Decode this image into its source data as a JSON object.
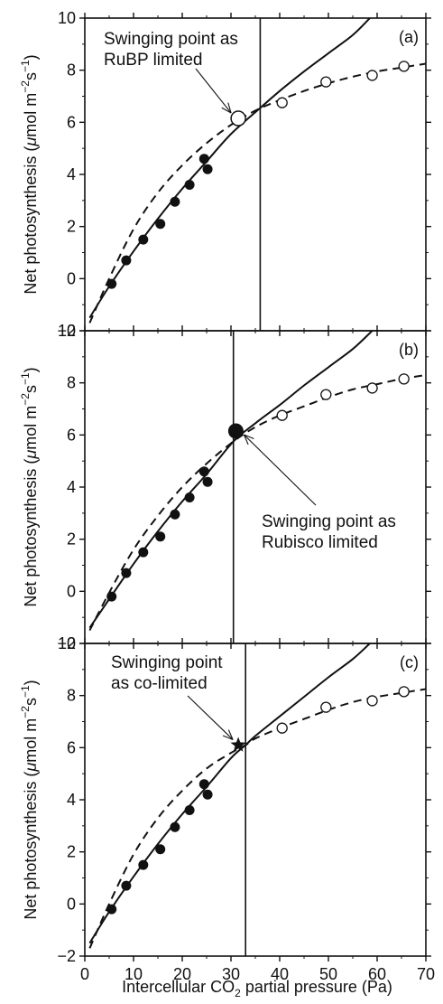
{
  "chart_data": {
    "type": "scatter",
    "xlabel_prefix": "Intercellular CO",
    "xlabel_sub": "2",
    "xlabel_suffix": " partial pressure (Pa)",
    "ylabel_prefix": "Net photosynthesis (",
    "ylabel_mu": "μ",
    "ylabel_mid": "mol m",
    "ylabel_exp1": "−2",
    "ylabel_s": "s",
    "ylabel_exp2": "−1",
    "ylabel_close": ")",
    "xlim": [
      0,
      70
    ],
    "ylim": [
      -2,
      10
    ],
    "x_ticks": [
      "0",
      "10",
      "20",
      "30",
      "40",
      "50",
      "60",
      "70"
    ],
    "y_ticks": [
      "−2",
      "0",
      "2",
      "4",
      "6",
      "8",
      "10"
    ],
    "filled_points": [
      {
        "x": 5.5,
        "y": -0.2
      },
      {
        "x": 8.5,
        "y": 0.7
      },
      {
        "x": 12.0,
        "y": 1.5
      },
      {
        "x": 15.5,
        "y": 2.1
      },
      {
        "x": 18.5,
        "y": 2.95
      },
      {
        "x": 21.5,
        "y": 3.6
      },
      {
        "x": 24.5,
        "y": 4.6
      },
      {
        "x": 25.2,
        "y": 4.2
      }
    ],
    "open_points": [
      {
        "x": 40.5,
        "y": 6.75
      },
      {
        "x": 49.5,
        "y": 7.55
      },
      {
        "x": 59.0,
        "y": 7.8
      },
      {
        "x": 65.5,
        "y": 8.15
      }
    ],
    "panels": [
      {
        "tag": "(a)",
        "vline_x": 36.0,
        "solid_curve": [
          [
            1,
            -1.5
          ],
          [
            5,
            -0.3
          ],
          [
            10,
            1.05
          ],
          [
            15,
            2.3
          ],
          [
            20,
            3.45
          ],
          [
            25,
            4.5
          ],
          [
            30,
            5.55
          ],
          [
            36,
            6.55
          ],
          [
            40,
            7.2
          ],
          [
            45,
            7.95
          ],
          [
            50,
            8.65
          ],
          [
            55,
            9.35
          ],
          [
            58.5,
            10
          ]
        ],
        "dashed_curve": [
          [
            1,
            -1.7
          ],
          [
            5,
            0.0
          ],
          [
            10,
            1.9
          ],
          [
            15,
            3.3
          ],
          [
            20,
            4.35
          ],
          [
            25,
            5.2
          ],
          [
            30,
            5.9
          ],
          [
            35,
            6.45
          ],
          [
            40,
            6.85
          ],
          [
            45,
            7.2
          ],
          [
            50,
            7.5
          ],
          [
            55,
            7.75
          ],
          [
            60,
            7.95
          ],
          [
            65,
            8.1
          ],
          [
            70,
            8.25
          ]
        ],
        "highlight": {
          "x": 31.5,
          "y": 6.15,
          "marker": "open-large"
        },
        "annotation": [
          "Swinging point as",
          "RuBP limited"
        ]
      },
      {
        "tag": "(b)",
        "vline_x": 30.5,
        "solid_curve": [
          [
            1,
            -1.4
          ],
          [
            5,
            -0.3
          ],
          [
            10,
            1.05
          ],
          [
            15,
            2.3
          ],
          [
            20,
            3.45
          ],
          [
            25,
            4.5
          ],
          [
            30.5,
            5.75
          ],
          [
            35,
            6.45
          ],
          [
            40,
            7.15
          ],
          [
            45,
            7.9
          ],
          [
            50,
            8.6
          ],
          [
            55,
            9.3
          ],
          [
            59,
            10
          ]
        ],
        "dashed_curve": [
          [
            1,
            -1.5
          ],
          [
            5,
            -0.05
          ],
          [
            10,
            1.6
          ],
          [
            15,
            2.9
          ],
          [
            20,
            4.0
          ],
          [
            25,
            4.9
          ],
          [
            30.5,
            5.75
          ],
          [
            35,
            6.3
          ],
          [
            40,
            6.75
          ],
          [
            45,
            7.1
          ],
          [
            50,
            7.45
          ],
          [
            55,
            7.75
          ],
          [
            60,
            7.95
          ],
          [
            65,
            8.15
          ],
          [
            70,
            8.3
          ]
        ],
        "highlight": {
          "x": 31.0,
          "y": 6.15,
          "marker": "filled-large"
        },
        "annotation": [
          "Swinging point as",
          "Rubisco limited"
        ]
      },
      {
        "tag": "(c)",
        "vline_x": 33.0,
        "solid_curve": [
          [
            1,
            -1.5
          ],
          [
            5,
            -0.3
          ],
          [
            10,
            1.05
          ],
          [
            15,
            2.3
          ],
          [
            20,
            3.45
          ],
          [
            25,
            4.5
          ],
          [
            30,
            5.6
          ],
          [
            33,
            6.1
          ],
          [
            35,
            6.45
          ],
          [
            40,
            7.2
          ],
          [
            45,
            7.95
          ],
          [
            50,
            8.7
          ],
          [
            55,
            9.4
          ],
          [
            58.5,
            10
          ]
        ],
        "dashed_curve": [
          [
            1,
            -1.7
          ],
          [
            5,
            0.0
          ],
          [
            10,
            1.9
          ],
          [
            15,
            3.3
          ],
          [
            20,
            4.35
          ],
          [
            25,
            5.2
          ],
          [
            30,
            5.8
          ],
          [
            33,
            6.1
          ],
          [
            35,
            6.35
          ],
          [
            40,
            6.75
          ],
          [
            45,
            7.1
          ],
          [
            50,
            7.45
          ],
          [
            55,
            7.75
          ],
          [
            60,
            7.95
          ],
          [
            65,
            8.1
          ],
          [
            70,
            8.25
          ]
        ],
        "highlight": {
          "x": 31.5,
          "y": 6.1,
          "marker": "star"
        },
        "annotation": [
          "Swinging point",
          "as co-limited"
        ]
      }
    ]
  }
}
